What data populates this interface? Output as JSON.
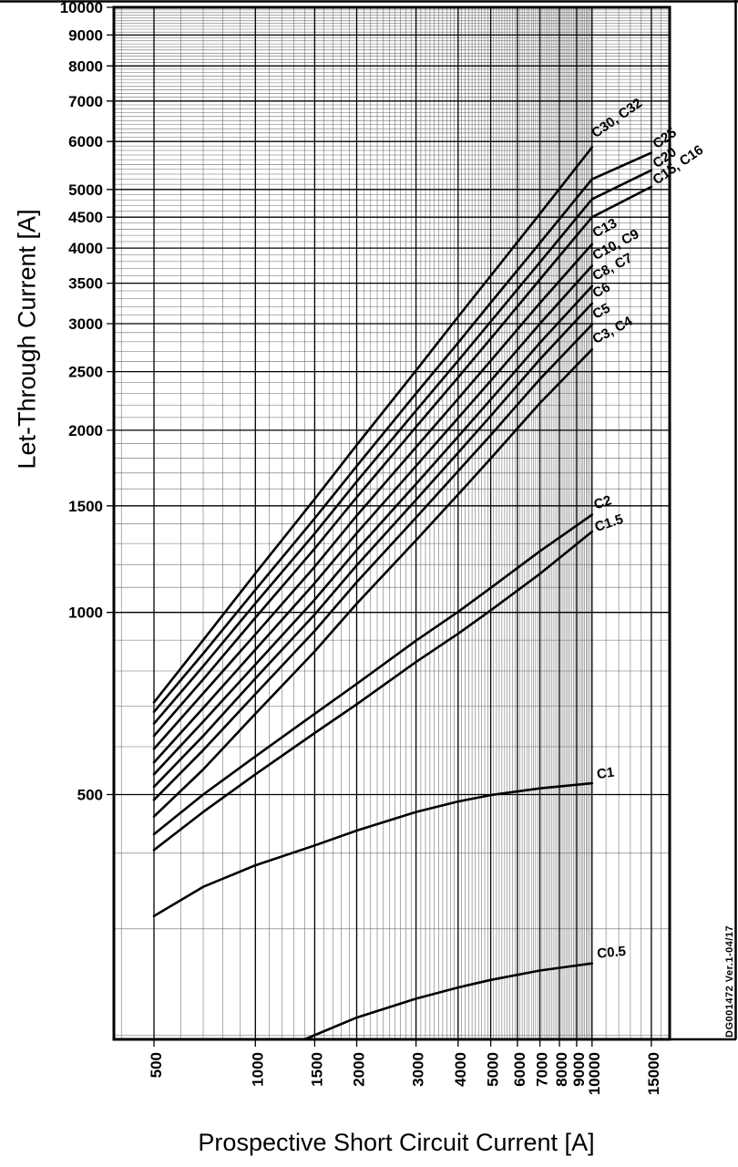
{
  "figure": {
    "watermark": "DG001472  Ver.1-04/17"
  },
  "chart_data": {
    "type": "line",
    "x_scale": "log",
    "y_scale": "log",
    "xlabel": "Prospective Short Circuit Current [A]",
    "ylabel": "Let-Through Current [A]",
    "xlim": [
      380,
      17000
    ],
    "ylim": [
      197,
      10000
    ],
    "grid": {
      "minor_x_step": 100,
      "minor_x_step_above_10000": 1000,
      "minor_y_step": 100
    },
    "x_tick_values": [
      500,
      1000,
      1500,
      2000,
      3000,
      4000,
      5000,
      6000,
      7000,
      8000,
      9000,
      10000,
      15000
    ],
    "x_tick_labels": [
      "500",
      "1000",
      "1500",
      "2000",
      "3000",
      "4000",
      "5000",
      "6000",
      "7000",
      "8000",
      "9000",
      "10000",
      "15000"
    ],
    "y_tick_values": [
      500,
      1000,
      1500,
      2000,
      2500,
      3000,
      3500,
      4000,
      4500,
      5000,
      6000,
      7000,
      8000,
      9000,
      10000
    ],
    "y_tick_labels": [
      "500",
      "1000",
      "1500",
      "2000",
      "2500",
      "3000",
      "3500",
      "4000",
      "4500",
      "5000",
      "6000",
      "7000",
      "8000",
      "9000",
      "10000"
    ],
    "series": [
      {
        "name": "c30-c32",
        "label": "C30, C32",
        "lrot": -35,
        "ldx": 4,
        "ldy": -10,
        "x": [
          500,
          700,
          1000,
          1500,
          2000,
          3000,
          4000,
          5000,
          7000,
          10000
        ],
        "y": [
          710,
          900,
          1160,
          1540,
          1890,
          2510,
          3080,
          3600,
          4560,
          5870
        ]
      },
      {
        "name": "c25",
        "label": "C25",
        "lrot": -35,
        "ldx": 6,
        "ldy": -4,
        "x": [
          500,
          700,
          1000,
          1500,
          2000,
          3000,
          4000,
          5000,
          7000,
          10000,
          15000
        ],
        "y": [
          685,
          855,
          1090,
          1430,
          1745,
          2300,
          2790,
          3250,
          4080,
          5200,
          5750
        ]
      },
      {
        "name": "c20",
        "label": "C20",
        "lrot": -35,
        "ldx": 6,
        "ldy": -2,
        "x": [
          500,
          700,
          1000,
          1500,
          2000,
          3000,
          4000,
          5000,
          7000,
          10000,
          15000
        ],
        "y": [
          655,
          815,
          1035,
          1350,
          1645,
          2155,
          2605,
          3025,
          3790,
          4820,
          5380
        ]
      },
      {
        "name": "c15-c16",
        "label": "C15, C16",
        "lrot": -35,
        "ldx": 6,
        "ldy": -2,
        "x": [
          500,
          700,
          1000,
          1500,
          2000,
          3000,
          4000,
          5000,
          7000,
          10000,
          15000
        ],
        "y": [
          625,
          775,
          980,
          1275,
          1550,
          2025,
          2445,
          2835,
          3550,
          4500,
          5050
        ]
      },
      {
        "name": "c13",
        "label": "C13",
        "lrot": -28,
        "ldx": 4,
        "ldy": -7,
        "x": [
          500,
          700,
          1000,
          1500,
          2000,
          3000,
          4000,
          5000,
          7000,
          10000
        ],
        "y": [
          595,
          735,
          920,
          1190,
          1445,
          1875,
          2255,
          2605,
          3245,
          4060
        ]
      },
      {
        "name": "c10-c9",
        "label": "C10, C9",
        "lrot": -28,
        "ldx": 4,
        "ldy": -6,
        "x": [
          500,
          700,
          1000,
          1500,
          2000,
          3000,
          4000,
          5000,
          7000,
          10000
        ],
        "y": [
          565,
          695,
          868,
          1118,
          1352,
          1745,
          2095,
          2415,
          3000,
          3740
        ]
      },
      {
        "name": "c8-c7",
        "label": "C8, C7",
        "lrot": -28,
        "ldx": 4,
        "ldy": -6,
        "x": [
          500,
          700,
          1000,
          1500,
          2000,
          3000,
          4000,
          5000,
          7000,
          10000
        ],
        "y": [
          540,
          660,
          820,
          1050,
          1268,
          1630,
          1952,
          2248,
          2790,
          3460
        ]
      },
      {
        "name": "c6",
        "label": "C6",
        "lrot": -28,
        "ldx": 4,
        "ldy": -6,
        "x": [
          500,
          700,
          1000,
          1500,
          2000,
          3000,
          4000,
          5000,
          7000,
          10000
        ],
        "y": [
          515,
          625,
          778,
          992,
          1196,
          1535,
          1836,
          2112,
          2620,
          3240
        ]
      },
      {
        "name": "c5",
        "label": "C5",
        "lrot": -28,
        "ldx": 4,
        "ldy": -6,
        "x": [
          500,
          700,
          1000,
          1500,
          2000,
          3000,
          4000,
          5000,
          7000,
          10000
        ],
        "y": [
          490,
          592,
          733,
          932,
          1122,
          1434,
          1712,
          1964,
          2430,
          2990
        ]
      },
      {
        "name": "c3-c4",
        "label": "C3, C4",
        "lrot": -28,
        "ldx": 4,
        "ldy": -6,
        "x": [
          500,
          700,
          1000,
          1500,
          2000,
          3000,
          4000,
          5000,
          7000,
          10000
        ],
        "y": [
          460,
          550,
          680,
          862,
          1034,
          1316,
          1566,
          1796,
          2218,
          2720
        ]
      },
      {
        "name": "c2",
        "label": "C2",
        "lrot": -18,
        "ldx": 4,
        "ldy": -6,
        "x": [
          500,
          700,
          1000,
          1500,
          2000,
          3000,
          4000,
          5000,
          7000,
          10000
        ],
        "y": [
          430,
          500,
          578,
          680,
          762,
          898,
          1002,
          1098,
          1262,
          1450
        ]
      },
      {
        "name": "c1-5",
        "label": "C1.5",
        "lrot": -18,
        "ldx": 5,
        "ldy": 0,
        "x": [
          500,
          700,
          1000,
          1500,
          2000,
          3000,
          4000,
          5000,
          7000,
          10000
        ],
        "y": [
          405,
          468,
          540,
          632,
          705,
          828,
          922,
          1008,
          1158,
          1360
        ]
      },
      {
        "name": "c1",
        "label": "C1",
        "lrot": -8,
        "ldx": 6,
        "ldy": -5,
        "x": [
          500,
          700,
          1000,
          1500,
          2000,
          3000,
          4000,
          5000,
          7000,
          10000
        ],
        "y": [
          315,
          352,
          382,
          412,
          436,
          468,
          487,
          499,
          512,
          522
        ]
      },
      {
        "name": "c0-5",
        "label": "C0.5",
        "lrot": -5,
        "ldx": 6,
        "ldy": -6,
        "x": [
          1400,
          2000,
          3000,
          4000,
          5000,
          7000,
          10000
        ],
        "y": [
          197,
          214,
          230,
          240,
          247,
          256,
          263
        ]
      }
    ]
  }
}
